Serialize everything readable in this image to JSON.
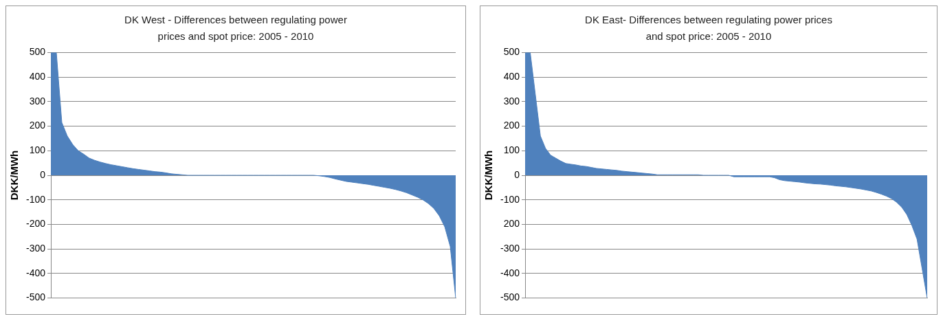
{
  "chart_data": [
    {
      "type": "area",
      "title": "DK West - Differences between regulating power prices and spot price:  2005 - 2010",
      "ylabel": "DKK/MWh",
      "categories": [
        null,
        null,
        null,
        null,
        null,
        null,
        null,
        null,
        null,
        null,
        null,
        null,
        null,
        null,
        null,
        null,
        null,
        null,
        null,
        null,
        null,
        null,
        null,
        null,
        null,
        null,
        null,
        null,
        null,
        null,
        null,
        null,
        null,
        null,
        null,
        null,
        null,
        null,
        null,
        null,
        null,
        null,
        null,
        null,
        null,
        null,
        null,
        null,
        null,
        null,
        null,
        null,
        null,
        null,
        null,
        null,
        null,
        null,
        null,
        null,
        null,
        null,
        null,
        null,
        null,
        null,
        null,
        null,
        null,
        null,
        null,
        null,
        null,
        null,
        null
      ],
      "values": [
        500,
        500,
        215,
        160,
        125,
        100,
        86,
        70,
        61,
        54,
        48,
        43,
        39,
        35,
        31,
        27,
        24,
        21,
        18,
        15,
        13,
        10,
        6,
        4,
        2,
        0,
        0,
        0,
        0,
        0,
        0,
        0,
        0,
        0,
        0,
        0,
        0,
        0,
        0,
        0,
        0,
        0,
        0,
        0,
        0,
        0,
        0,
        0,
        0,
        -2,
        -5,
        -9,
        -15,
        -20,
        -25,
        -28,
        -31,
        -34,
        -37,
        -41,
        -45,
        -49,
        -53,
        -58,
        -64,
        -71,
        -80,
        -89,
        -100,
        -115,
        -135,
        -165,
        -210,
        -290,
        -500
      ],
      "color": "#4f81bd",
      "ylim": [
        -500,
        500
      ],
      "yticks": [
        -500,
        -400,
        -300,
        -200,
        -100,
        0,
        100,
        200,
        300,
        400,
        500
      ],
      "grid": "y",
      "legend": false
    },
    {
      "type": "area",
      "title": "DK East- Differences between regulating power prices and spot price:  2005  - 2010",
      "ylabel": "DKK/MWh",
      "categories": [
        null,
        null,
        null,
        null,
        null,
        null,
        null,
        null,
        null,
        null,
        null,
        null,
        null,
        null,
        null,
        null,
        null,
        null,
        null,
        null,
        null,
        null,
        null,
        null,
        null,
        null,
        null,
        null,
        null,
        null,
        null,
        null,
        null,
        null,
        null,
        null,
        null,
        null,
        null,
        null,
        null,
        null,
        null,
        null,
        null,
        null,
        null,
        null,
        null,
        null,
        null,
        null,
        null,
        null,
        null,
        null,
        null,
        null,
        null,
        null,
        null,
        null,
        null,
        null,
        null,
        null,
        null,
        null,
        null,
        null,
        null,
        null,
        null,
        null,
        null,
        null,
        null,
        null,
        null,
        null
      ],
      "values": [
        500,
        500,
        330,
        160,
        110,
        82,
        70,
        58,
        48,
        45,
        42,
        38,
        36,
        32,
        28,
        26,
        24,
        22,
        20,
        17,
        15,
        13,
        11,
        9,
        7,
        5,
        2,
        2,
        2,
        2,
        2,
        2,
        2,
        2,
        2,
        0,
        0,
        0,
        0,
        0,
        0,
        -6,
        -6,
        -6,
        -6,
        -6,
        -6,
        -6,
        -6,
        -10,
        -18,
        -22,
        -24,
        -26,
        -28,
        -31,
        -33,
        -35,
        -36,
        -38,
        -40,
        -43,
        -45,
        -47,
        -50,
        -53,
        -56,
        -60,
        -64,
        -70,
        -77,
        -85,
        -95,
        -110,
        -130,
        -160,
        -205,
        -260,
        -380,
        -500
      ],
      "color": "#4f81bd",
      "ylim": [
        -500,
        500
      ],
      "yticks": [
        -500,
        -400,
        -300,
        {
          "value": -200,
          "label": "200"
        },
        -100,
        0,
        100,
        200,
        300,
        400,
        500
      ],
      "grid": "y",
      "legend": false
    }
  ]
}
